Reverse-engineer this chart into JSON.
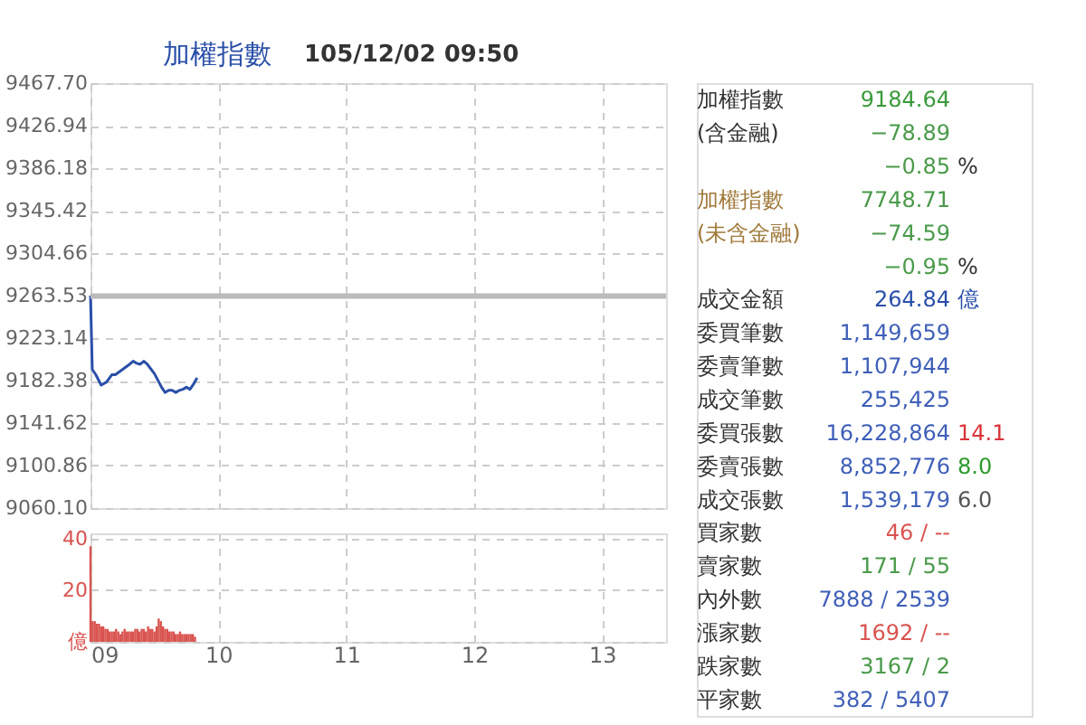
{
  "chart_data": [
    {
      "type": "line",
      "title": "加權指數",
      "subtitle": "105/12/02 09:50",
      "series": [
        {
          "color": "#2a4fa8",
          "x": [
            9.0,
            9.0139,
            9.0417,
            9.0833,
            9.125,
            9.1667,
            9.1944,
            9.25,
            9.3056,
            9.3333,
            9.3611,
            9.3889,
            9.4167,
            9.4444,
            9.5,
            9.5556,
            9.5833,
            9.6111,
            9.6389,
            9.6667,
            9.6944,
            9.7222,
            9.75,
            9.7778,
            9.8056,
            9.8333
          ],
          "values": [
            9264,
            9193,
            9188,
            9178,
            9181,
            9188,
            9188,
            9193,
            9198,
            9201,
            9199,
            9198,
            9201,
            9198,
            9189,
            9176,
            9171,
            9173,
            9173,
            9171,
            9173,
            9174,
            9176,
            9174,
            9179,
            9185
          ]
        }
      ],
      "xlim": [
        9,
        13.5
      ],
      "xticks": [
        9,
        10,
        11,
        12,
        13
      ],
      "ylim": [
        9060.1,
        9467.7
      ],
      "yticks": [
        {
          "value": 9060.1,
          "label": "9060.10"
        },
        9100.86,
        9141.62,
        9182.38,
        9223.14,
        9263.53,
        9304.66,
        9345.42,
        9386.18,
        9426.94,
        {
          "value": 9467.7,
          "label": "9467.70"
        }
      ],
      "ref_lines": [
        {
          "axis": "y",
          "value": 9263.53,
          "color": "#bbbbbb"
        }
      ],
      "grid": true,
      "tick_labels": "y",
      "line_style": "solid",
      "marker": "none"
    },
    {
      "type": "bar",
      "color": "#d9534f",
      "x": [
        9.0,
        9.0167,
        9.0333,
        9.05,
        9.0667,
        9.0833,
        9.1,
        9.1167,
        9.1333,
        9.15,
        9.1667,
        9.1833,
        9.2,
        9.2167,
        9.2333,
        9.25,
        9.2667,
        9.2833,
        9.3,
        9.3167,
        9.3333,
        9.35,
        9.3667,
        9.3833,
        9.4,
        9.4167,
        9.4333,
        9.45,
        9.4667,
        9.4833,
        9.5,
        9.5167,
        9.5333,
        9.55,
        9.5667,
        9.5833,
        9.6,
        9.6167,
        9.6333,
        9.65,
        9.6667,
        9.6833,
        9.7,
        9.7167,
        9.7333,
        9.75,
        9.7667,
        9.7833,
        9.8,
        9.8167
      ],
      "values": [
        37,
        8,
        8,
        7,
        7,
        6,
        6,
        5,
        5,
        4,
        4,
        4,
        5,
        4,
        3,
        4,
        5,
        4,
        4,
        4,
        4,
        5,
        5,
        4,
        5,
        5,
        4,
        6,
        5,
        5,
        4,
        6,
        9,
        8,
        6,
        5,
        5,
        4,
        4,
        4,
        3,
        3,
        4,
        3,
        3,
        3,
        3,
        3,
        3,
        2
      ],
      "xlim": [
        9,
        13.5
      ],
      "xticks": [
        {
          "value": 9,
          "label": "09"
        },
        {
          "value": 10,
          "label": "10"
        },
        {
          "value": 11,
          "label": "11"
        },
        {
          "value": 12,
          "label": "12"
        },
        {
          "value": 13,
          "label": "13"
        }
      ],
      "ylim": [
        0,
        42
      ],
      "yticks": [
        {
          "value": 0,
          "label": "億"
        },
        20,
        40
      ],
      "grid": true
    },
    {
      "type": "other",
      "cell_labels": [
        [
          "加權指數",
          "9184.64",
          null
        ],
        [
          "(含金融)",
          "−78.89",
          null
        ],
        [
          null,
          "−0.85",
          "%"
        ],
        [
          "加權指數",
          "7748.71",
          null
        ],
        [
          "(未含金融)",
          "−74.59",
          null
        ],
        [
          null,
          "−0.95",
          "%"
        ],
        [
          "成交金額",
          "264.84",
          "億"
        ],
        [
          "委買筆數",
          "1,149,659",
          null
        ],
        [
          "委賣筆數",
          "1,107,944",
          null
        ],
        [
          "成交筆數",
          "255,425",
          null
        ],
        [
          "委買張數",
          "16,228,864",
          "14.1"
        ],
        [
          "委賣張數",
          "8,852,776",
          "8.0"
        ],
        [
          "成交張數",
          "1,539,179",
          "6.0"
        ],
        [
          "買家數",
          "46 / --",
          null
        ],
        [
          "賣家數",
          "171 / 55",
          null
        ],
        [
          "內外數",
          "7888 / 2539",
          null
        ],
        [
          "漲家數",
          "1692 / --",
          null
        ],
        [
          "跌家數",
          "3167 / 2",
          null
        ],
        [
          "平家數",
          "382 / 5407",
          null
        ]
      ],
      "colors": [
        [
          "#333333",
          "#3a9a3a",
          null
        ],
        [
          "#333333",
          "#4a9a4a",
          null
        ],
        [
          null,
          "#4a9a4a",
          "#333333"
        ],
        [
          "#a07a3c",
          "#4a9a4a",
          null
        ],
        [
          "#a07a3c",
          "#4a9a4a",
          null
        ],
        [
          null,
          "#4a9a4a",
          "#333333"
        ],
        [
          "#333333",
          "#2a4fa8",
          "#2a4fa8"
        ],
        [
          "#333333",
          "#3f5fb8",
          null
        ],
        [
          "#333333",
          "#3f5fb8",
          null
        ],
        [
          "#333333",
          "#3f5fb8",
          null
        ],
        [
          "#333333",
          "#3f5fb8",
          "#d9343a"
        ],
        [
          "#333333",
          "#3f5fb8",
          "#2a9a2a"
        ],
        [
          "#333333",
          "#3f5fb8",
          "#555555"
        ],
        [
          "#333333",
          "#d9534f",
          null
        ],
        [
          "#333333",
          "#4a9a4a",
          null
        ],
        [
          "#333333",
          "#3f5fb8",
          null
        ],
        [
          "#333333",
          "#d9534f",
          null
        ],
        [
          "#333333",
          "#4a9a4a",
          null
        ],
        [
          "#333333",
          "#3f5fb8",
          null
        ]
      ]
    }
  ]
}
